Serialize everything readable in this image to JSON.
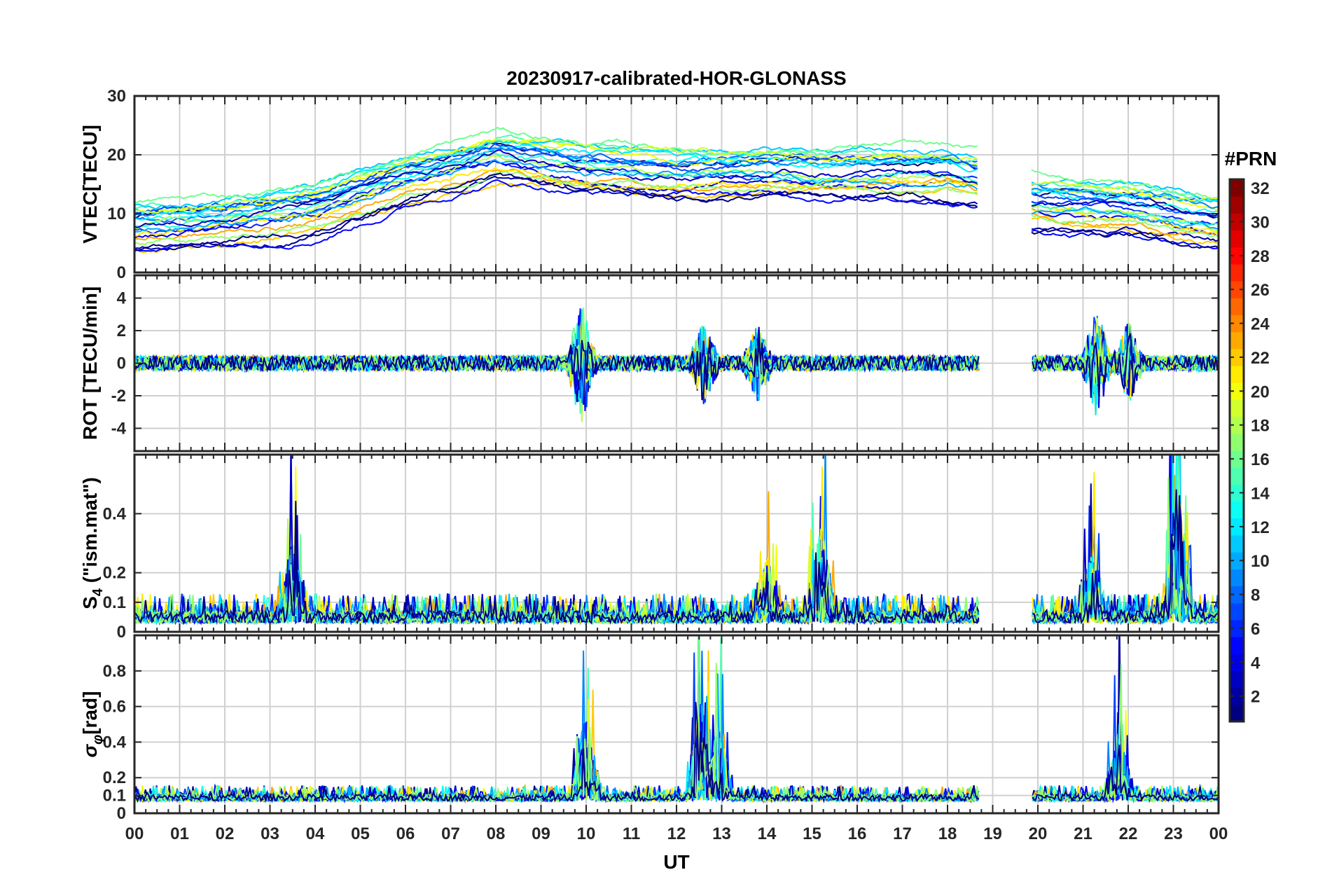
{
  "chart_data": {
    "type": "line",
    "title": "20230917-calibrated-HOR-GLONASS",
    "xlabel": "UT",
    "x_tick_labels": [
      "00",
      "01",
      "02",
      "03",
      "04",
      "05",
      "06",
      "07",
      "08",
      "09",
      "10",
      "11",
      "12",
      "13",
      "14",
      "15",
      "16",
      "17",
      "18",
      "19",
      "20",
      "21",
      "22",
      "23",
      "00"
    ],
    "x_range_hours": [
      0,
      24
    ],
    "data_gap_hours": [
      18.7,
      19.85
    ],
    "grid": true,
    "panels": [
      {
        "ylabel": "VTEC[TECU]",
        "ylim": [
          0,
          30
        ],
        "yticks": [
          0,
          10,
          20,
          30
        ],
        "ytick_labels": [
          "0",
          "10",
          "20",
          "30"
        ],
        "baseline": [
          [
            0,
            8
          ],
          [
            2,
            9
          ],
          [
            4,
            11
          ],
          [
            6,
            16
          ],
          [
            8,
            20
          ],
          [
            10,
            18
          ],
          [
            12,
            17
          ],
          [
            14,
            17
          ],
          [
            16,
            17
          ],
          [
            18,
            17
          ],
          [
            18.7,
            16
          ],
          [
            19.85,
            12
          ],
          [
            22,
            11
          ],
          [
            24,
            9
          ]
        ],
        "spread": 4.5
      },
      {
        "ylabel": "ROT [TECU/min]",
        "ylim": [
          -5.4,
          5.4
        ],
        "yticks": [
          -4,
          -2,
          0,
          2,
          4
        ],
        "ytick_labels": [
          "-4",
          "-2",
          "0",
          "2",
          "4"
        ],
        "baseline": [
          [
            0,
            0
          ],
          [
            24,
            0
          ]
        ],
        "noise": 0.45,
        "bursts": [
          [
            9.9,
            3.5
          ],
          [
            12.6,
            2.2
          ],
          [
            13.8,
            2.0
          ],
          [
            21.3,
            3.0
          ],
          [
            22.0,
            2.2
          ]
        ]
      },
      {
        "ylabel": "S4 (\"ism.mat\")",
        "ylabel_main": "S",
        "ylabel_sub": "4",
        "ylabel_rest": " (\"ism.mat\")",
        "ylim": [
          0,
          0.6
        ],
        "yticks": [
          0,
          0.1,
          0.2,
          0.4
        ],
        "ytick_labels": [
          "0",
          "0.1",
          "0.2",
          "0.4"
        ],
        "baseline": [
          [
            0,
            0.03
          ],
          [
            24,
            0.03
          ]
        ],
        "noise": 0.04,
        "bursts": [
          [
            3.5,
            0.25
          ],
          [
            15.2,
            0.3
          ],
          [
            23.1,
            0.5
          ],
          [
            21.2,
            0.2
          ],
          [
            14.0,
            0.18
          ]
        ]
      },
      {
        "ylabel": "σφ[rad]",
        "ylabel_main": "σ",
        "ylabel_sub": "φ",
        "ylabel_rest": "[rad]",
        "ylim": [
          0,
          1.0
        ],
        "yticks": [
          0,
          0.1,
          0.2,
          0.4,
          0.6,
          0.8
        ],
        "ytick_labels": [
          "0",
          "0.1",
          "0.2",
          "0.4",
          "0.6",
          "0.8"
        ],
        "baseline": [
          [
            0,
            0.07
          ],
          [
            24,
            0.07
          ]
        ],
        "noise": 0.035,
        "bursts": [
          [
            10.0,
            0.5
          ],
          [
            12.55,
            0.55
          ],
          [
            12.95,
            0.38
          ],
          [
            21.8,
            0.4
          ]
        ]
      }
    ],
    "colorbar": {
      "label": "#PRN",
      "range": [
        1,
        32
      ],
      "tick_labels": [
        "2",
        "4",
        "6",
        "8",
        "10",
        "12",
        "14",
        "16",
        "18",
        "20",
        "22",
        "24",
        "26",
        "28",
        "30",
        "32"
      ],
      "colormap": "jet"
    },
    "series_count": 24
  }
}
